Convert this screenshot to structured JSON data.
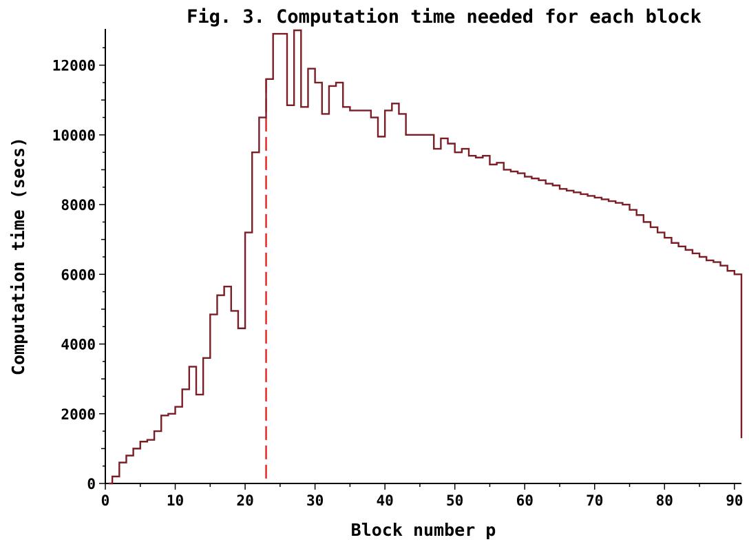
{
  "chart_data": {
    "type": "line",
    "title": "Fig. 3. Computation time needed for each block",
    "xlabel": "Block number p",
    "ylabel": "Computation time (secs)",
    "xlim": [
      0,
      91
    ],
    "ylim": [
      0,
      13000
    ],
    "x_ticks": [
      0,
      10,
      20,
      30,
      40,
      50,
      60,
      70,
      80,
      90
    ],
    "y_ticks": [
      0,
      2000,
      4000,
      6000,
      8000,
      10000,
      12000
    ],
    "grid": false,
    "colors": {
      "series": "#7a1d26",
      "marker": "#e81f1f"
    },
    "marker_line": {
      "x": 23,
      "style": "dashed"
    },
    "series": [
      {
        "step": "post",
        "x": [
          0.5,
          1,
          2,
          3,
          4,
          5,
          6,
          7,
          8,
          9,
          10,
          11,
          12,
          13,
          14,
          15,
          16,
          17,
          18,
          19,
          20,
          21,
          22,
          23,
          24,
          25,
          26,
          27,
          28,
          29,
          30,
          31,
          32,
          33,
          34,
          35,
          36,
          37,
          38,
          39,
          40,
          41,
          42,
          43,
          44,
          45,
          46,
          47,
          48,
          49,
          50,
          51,
          52,
          53,
          54,
          55,
          56,
          57,
          58,
          59,
          60,
          61,
          62,
          63,
          64,
          65,
          66,
          67,
          68,
          69,
          70,
          71,
          72,
          73,
          74,
          75,
          76,
          77,
          78,
          79,
          80,
          81,
          82,
          83,
          84,
          85,
          86,
          87,
          88,
          89,
          90,
          91
        ],
        "y": [
          0,
          200,
          600,
          800,
          1000,
          1200,
          1250,
          1500,
          1950,
          2000,
          2200,
          2700,
          3350,
          2550,
          3600,
          4850,
          5400,
          5650,
          4950,
          4450,
          7200,
          9500,
          10500,
          11600,
          12900,
          12900,
          10850,
          13000,
          10800,
          11900,
          11500,
          10600,
          11400,
          11500,
          10800,
          10700,
          10700,
          10700,
          10500,
          9950,
          10700,
          10900,
          10600,
          10000,
          10000,
          10000,
          10000,
          9600,
          9900,
          9750,
          9500,
          9600,
          9400,
          9350,
          9400,
          9150,
          9200,
          9000,
          8950,
          8900,
          8800,
          8750,
          8700,
          8600,
          8550,
          8450,
          8400,
          8350,
          8300,
          8250,
          8200,
          8150,
          8100,
          8050,
          8000,
          7850,
          7700,
          7500,
          7350,
          7200,
          7050,
          6900,
          6800,
          6700,
          6600,
          6500,
          6400,
          6350,
          6250,
          6100,
          6000,
          1300
        ]
      }
    ]
  }
}
